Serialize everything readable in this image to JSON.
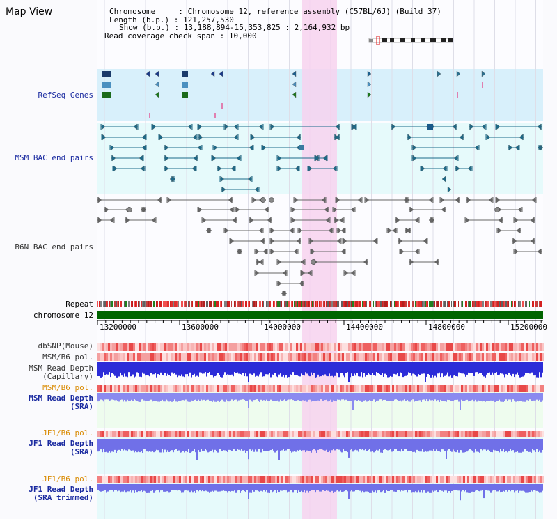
{
  "title": "Map View",
  "info": {
    "chromosome_label": "Chromosome",
    "chromosome_value": "Chromosome 12, reference assembly (C57BL/6J) (Build 37)",
    "length_label": "Length (b.p.)",
    "length_value": "121,257,530",
    "show_label": "Show (b.p.)",
    "show_value": "13,188,894-15,353,825 : 2,164,932 bp",
    "span_label": "Read coverage check span",
    "span_value": "10,000"
  },
  "tracks": {
    "refseq": "RefSeq Genes",
    "msm_bac": "MSM BAC end pairs",
    "b6n_bac": "B6N BAC end pairs",
    "repeat": "Repeat",
    "chromosome": "chromosome 12",
    "dbsnp": "dbSNP(Mouse)",
    "msm_b6_pol_1": "MSM/B6 pol.",
    "msm_depth_cap_1": "MSM Read Depth",
    "msm_depth_cap_2": "(Capillary)",
    "msm_b6_pol_2": "MSM/B6 pol.",
    "msm_depth_sra_1": "MSM Read Depth",
    "msm_depth_sra_2": "(SRA)",
    "jf1_b6_pol_1": "JF1/B6 pol.",
    "jf1_depth_sra_1": "JF1 Read Depth",
    "jf1_depth_sra_2": "(SRA)",
    "jf1_b6_pol_2": "JF1/B6 pol.",
    "jf1_depth_trim_1": "JF1 Read Depth",
    "jf1_depth_trim_2": "(SRA trimmed)"
  },
  "axis": {
    "ticks": [
      "13200000",
      "13600000",
      "14000000",
      "14400000",
      "14800000",
      "15200000"
    ]
  },
  "colors": {
    "highlight": "#f7d2ee",
    "refseq_bg": "#d8f0fb",
    "light_bg": "#e6fafb",
    "chromosome_bar": "#006400",
    "depth_blue": "#2c2cd8",
    "depth_light": "#8a8af0"
  }
}
